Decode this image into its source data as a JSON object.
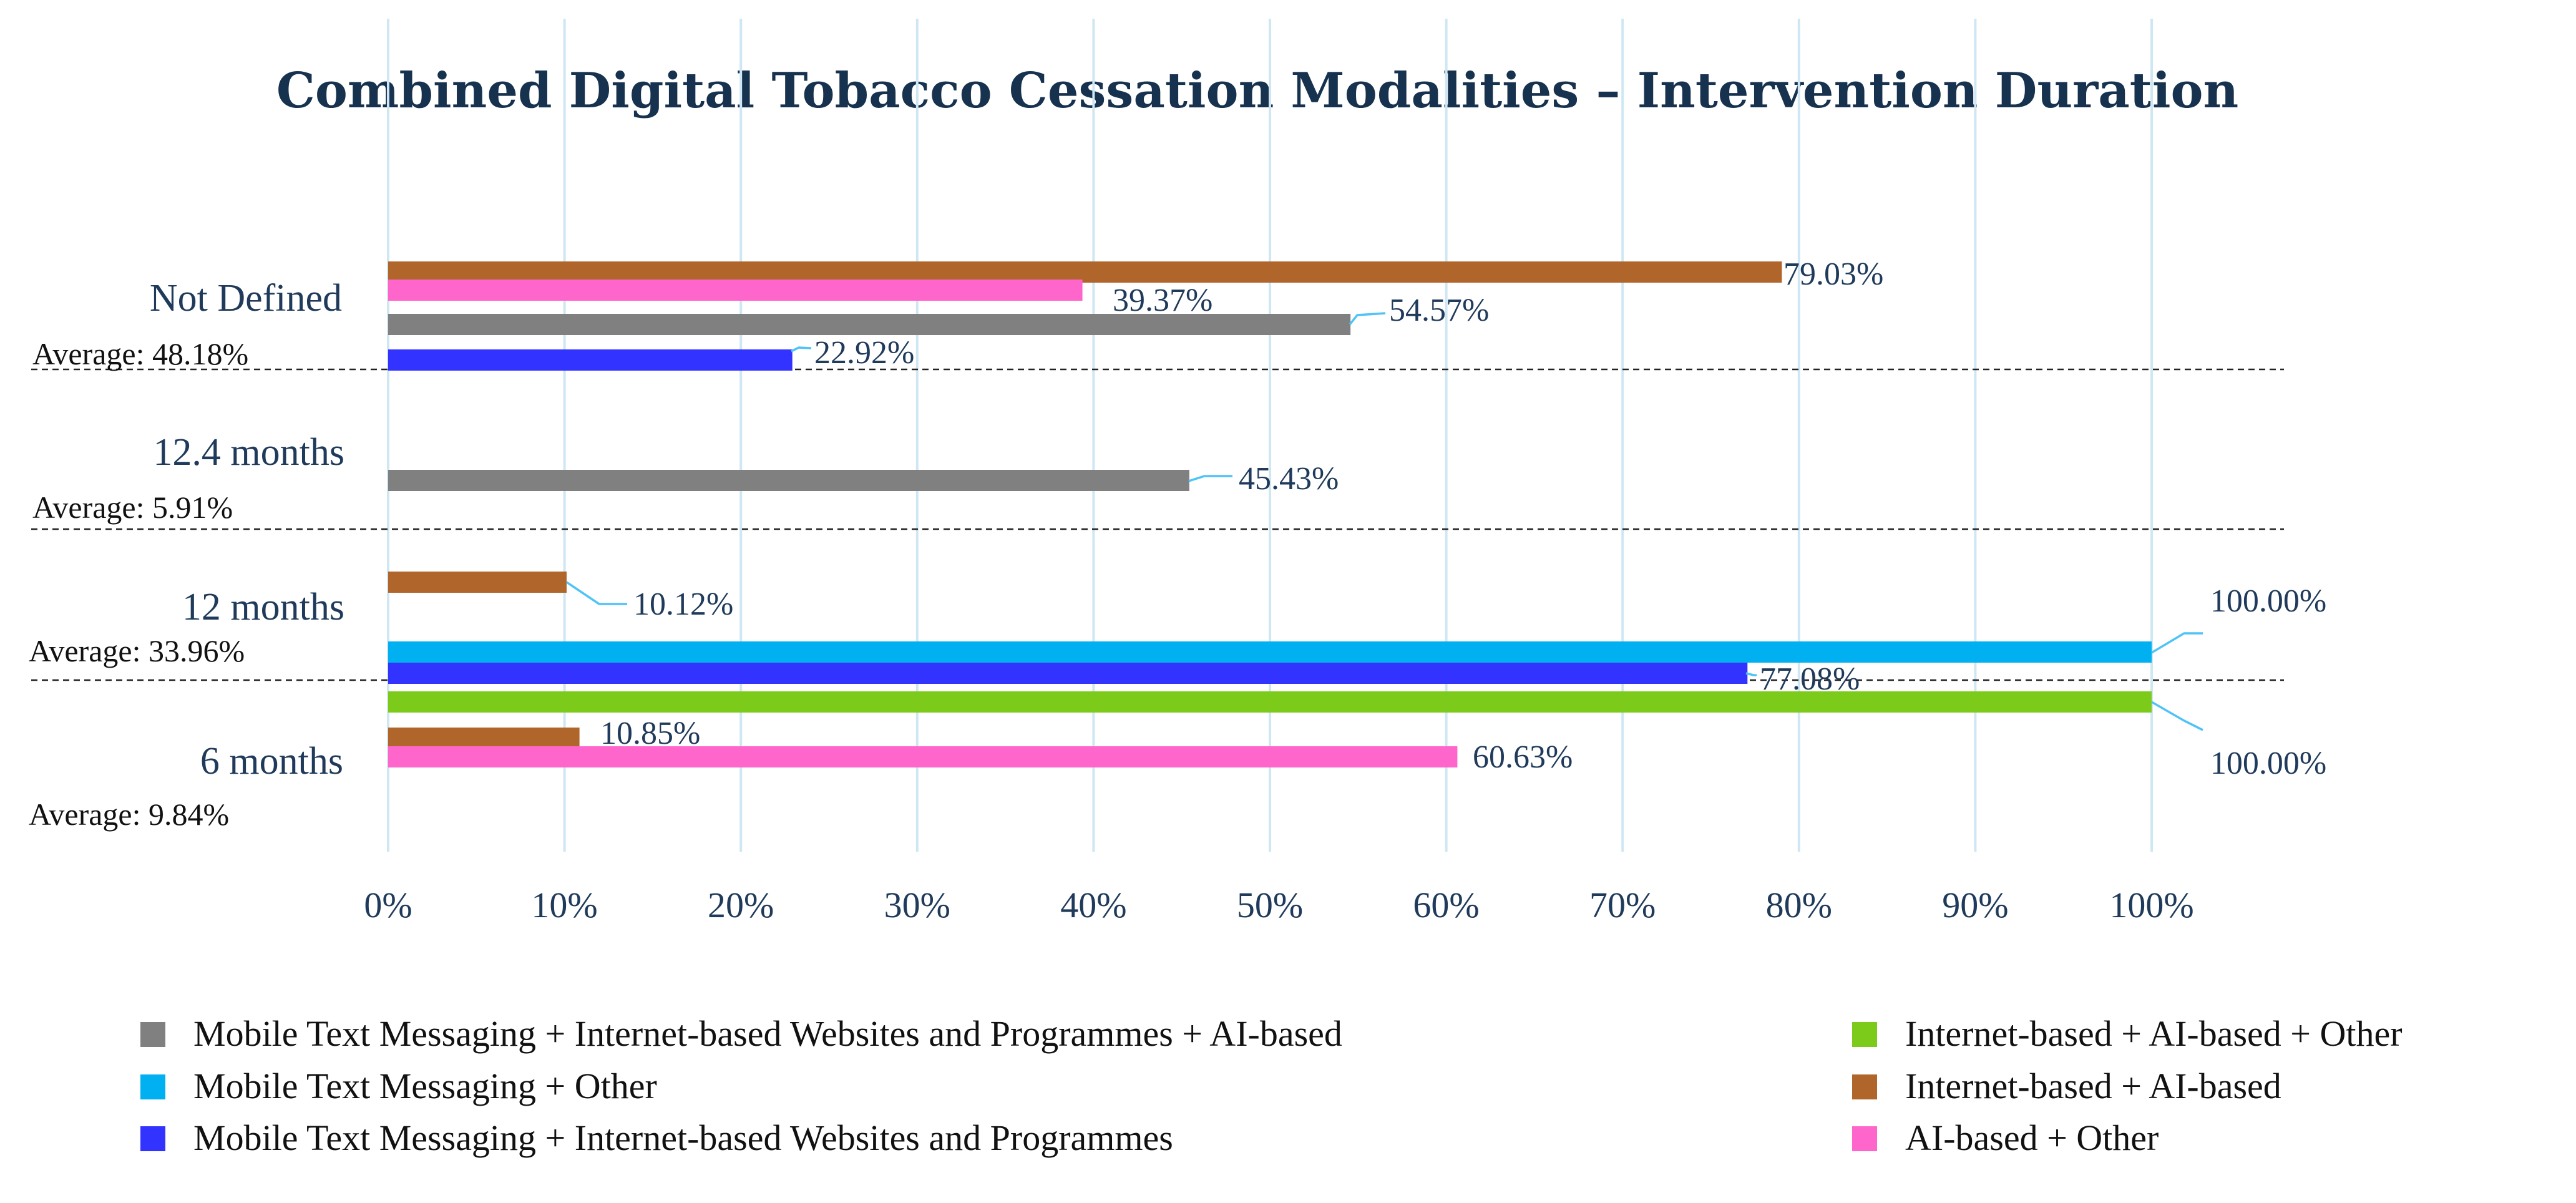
{
  "chart_data": {
    "type": "bar",
    "orientation": "horizontal",
    "title": "Combined Digital Tobacco Cessation Modalities – Intervention Duration",
    "xlabel": "",
    "ylabel": "",
    "xlim": [
      0,
      100
    ],
    "x_ticks": [
      "0%",
      "10%",
      "20%",
      "30%",
      "40%",
      "50%",
      "60%",
      "70%",
      "80%",
      "90%",
      "100%"
    ],
    "grid": true,
    "legend_position": "bottom",
    "series": [
      {
        "name": "Mobile Text Messaging + Internet-based Websites and Programmes + AI-based",
        "color": "#808080"
      },
      {
        "name": "Mobile Text Messaging + Other",
        "color": "#00B0F0"
      },
      {
        "name": "Mobile Text Messaging + Internet-based Websites and Programmes",
        "color": "#3333FF"
      },
      {
        "name": "Internet-based + AI-based + Other",
        "color": "#7CCB1A"
      },
      {
        "name": "Internet-based + AI-based",
        "color": "#B0652A"
      },
      {
        "name": "AI-based + Other",
        "color": "#FF66CC"
      }
    ],
    "groups": [
      {
        "category": "Not Defined",
        "average": "Average: 48.18%",
        "bars": [
          {
            "series": 4,
            "value": 79.03,
            "label": "79.03%"
          },
          {
            "series": 5,
            "value": 39.37,
            "label": "39.37%"
          },
          {
            "series": 0,
            "value": 54.57,
            "label": "54.57%"
          },
          {
            "series": 2,
            "value": 22.92,
            "label": "22.92%"
          }
        ]
      },
      {
        "category": "12.4 months",
        "average": "Average: 5.91%",
        "bars": [
          {
            "series": 0,
            "value": 45.43,
            "label": "45.43%"
          }
        ]
      },
      {
        "category": "12 months",
        "average": "Average: 33.96%",
        "bars": [
          {
            "series": 4,
            "value": 10.12,
            "label": "10.12%"
          },
          {
            "series": 1,
            "value": 100.0,
            "label": "100.00%"
          },
          {
            "series": 2,
            "value": 77.08,
            "label": "77.08%"
          }
        ]
      },
      {
        "category": "6 months",
        "average": "Average: 9.84%",
        "bars": [
          {
            "series": 3,
            "value": 100.0,
            "label": "100.00%"
          },
          {
            "series": 4,
            "value": 10.85,
            "label": "10.85%"
          },
          {
            "series": 5,
            "value": 60.63,
            "label": "60.63%"
          }
        ]
      }
    ]
  }
}
